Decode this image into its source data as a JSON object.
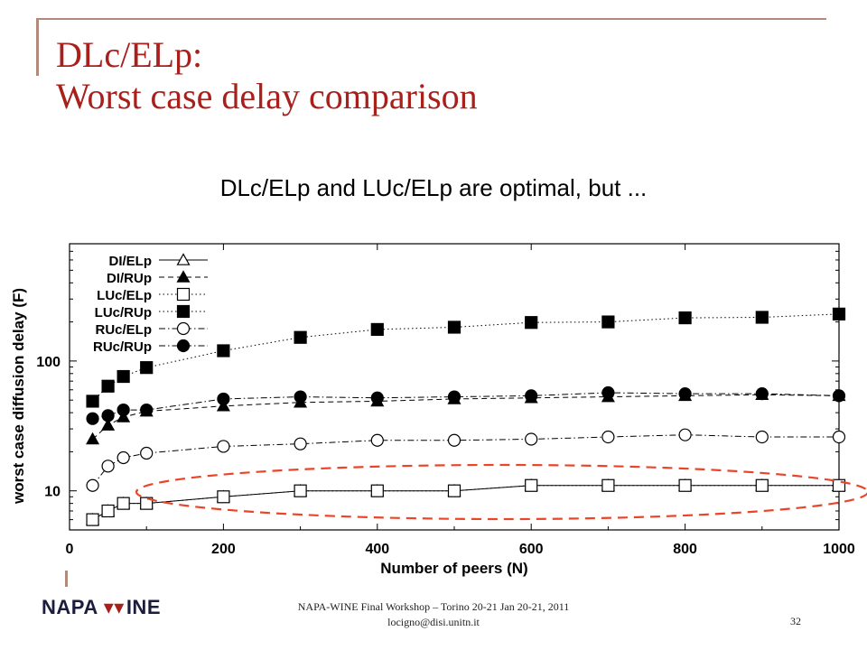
{
  "slide": {
    "title_line1": "DLc/ELp:",
    "title_line2": "Worst case delay comparison",
    "subtitle": "DLc/ELp and LUc/ELp are optimal, but ...",
    "footer_line1": "NAPA-WINE Final Workshop – Torino 20-21 Jan 20-21, 2011",
    "footer_line2": "locigno@disi.unitn.it",
    "page_number": "32",
    "logo_left": "NAPA",
    "logo_right": "INE",
    "title_color": "#a8201c",
    "highlight_color": "#e8452a"
  },
  "chart_data": {
    "type": "line",
    "xlabel": "Number of peers (N)",
    "ylabel": "worst case diffusion delay (F)",
    "xlim": [
      0,
      1000
    ],
    "ylim": [
      5,
      800
    ],
    "yscale": "log",
    "x_ticks": [
      0,
      200,
      400,
      600,
      800,
      1000
    ],
    "y_ticks": [
      10,
      100
    ],
    "legend_position": "top-left",
    "annotation": "dashed red ellipse highlighting the DI/ELp and LUc/ELp curves",
    "series": [
      {
        "name": "DI/ELp",
        "marker": "triangle-open",
        "line": "solid",
        "x": [
          30,
          50,
          70,
          100,
          200,
          300,
          400,
          500,
          600,
          700,
          800,
          900,
          1000
        ],
        "y": [
          6,
          7,
          8,
          8,
          9,
          10,
          10,
          10,
          11,
          11,
          11,
          11,
          11
        ]
      },
      {
        "name": "DI/RUp",
        "marker": "triangle-filled",
        "line": "dashed",
        "x": [
          30,
          50,
          70,
          100,
          200,
          300,
          400,
          500,
          600,
          700,
          800,
          900,
          1000
        ],
        "y": [
          25,
          32,
          37,
          41,
          45,
          48,
          49,
          51,
          52,
          53,
          54,
          55,
          54
        ]
      },
      {
        "name": "LUc/ELp",
        "marker": "square-open",
        "line": "dotted",
        "x": [
          30,
          50,
          70,
          100,
          200,
          300,
          400,
          500,
          600,
          700,
          800,
          900,
          1000
        ],
        "y": [
          6,
          7,
          8,
          8,
          9,
          10,
          10,
          10,
          11,
          11,
          11,
          11,
          11
        ]
      },
      {
        "name": "LUc/RUp",
        "marker": "square-filled",
        "line": "dotted",
        "x": [
          30,
          50,
          70,
          100,
          200,
          300,
          400,
          500,
          600,
          700,
          800,
          900,
          1000
        ],
        "y": [
          49,
          64,
          76,
          89,
          120,
          152,
          175,
          182,
          198,
          200,
          215,
          217,
          230
        ]
      },
      {
        "name": "RUc/ELp",
        "marker": "circle-open",
        "line": "dashdot",
        "x": [
          30,
          50,
          70,
          100,
          200,
          300,
          400,
          500,
          600,
          700,
          800,
          900,
          1000
        ],
        "y": [
          11,
          15.5,
          18,
          19.5,
          22,
          23,
          24.5,
          24.5,
          25,
          26,
          27,
          26,
          26
        ]
      },
      {
        "name": "RUc/RUp",
        "marker": "circle-filled",
        "line": "dashdot",
        "x": [
          30,
          50,
          70,
          100,
          200,
          300,
          400,
          500,
          600,
          700,
          800,
          900,
          1000
        ],
        "y": [
          36,
          38,
          42,
          42,
          51,
          53,
          52,
          53,
          54,
          57,
          56,
          56,
          54
        ]
      }
    ]
  }
}
